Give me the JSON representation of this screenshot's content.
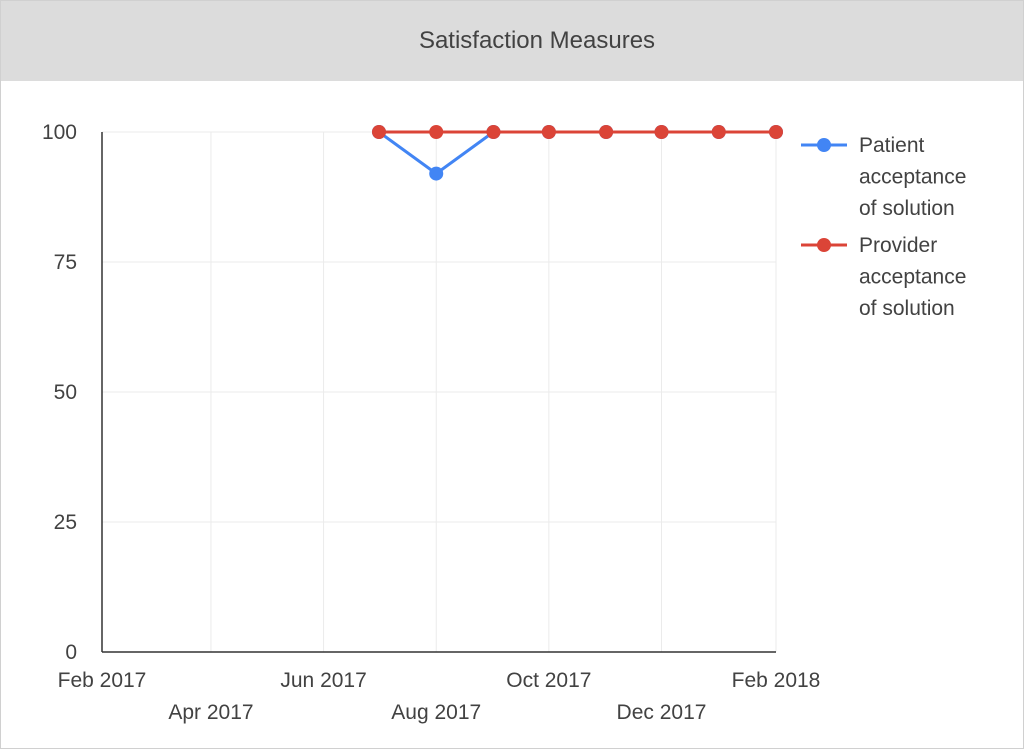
{
  "chart_data": {
    "type": "line",
    "title": "Satisfaction Measures",
    "xlabel": "",
    "ylabel": "",
    "ylim": [
      0,
      100
    ],
    "yticks": [
      "0",
      "25",
      "50",
      "75",
      "100"
    ],
    "xlim": [
      "2017-02-01",
      "2018-02-01"
    ],
    "xticks": [
      {
        "date": "2017-02-01",
        "label": "Feb 2017",
        "row": 1
      },
      {
        "date": "2017-04-01",
        "label": "Apr 2017",
        "row": 2
      },
      {
        "date": "2017-06-01",
        "label": "Jun 2017",
        "row": 1
      },
      {
        "date": "2017-08-01",
        "label": "Aug 2017",
        "row": 2
      },
      {
        "date": "2017-10-01",
        "label": "Oct 2017",
        "row": 1
      },
      {
        "date": "2017-12-01",
        "label": "Dec 2017",
        "row": 2
      },
      {
        "date": "2018-02-01",
        "label": "Feb 2018",
        "row": 1
      }
    ],
    "grid": true,
    "legend_position": "right",
    "series": [
      {
        "name": "Patient acceptance of solution",
        "legend_lines": [
          "Patient",
          "acceptance",
          "of solution"
        ],
        "color": "#4285f4",
        "x": [
          "2017-07-01",
          "2017-08-01",
          "2017-09-01",
          "2017-10-01",
          "2017-11-01",
          "2017-12-01",
          "2018-01-01",
          "2018-02-01"
        ],
        "y": [
          100,
          92,
          100,
          100,
          100,
          100,
          100,
          100
        ]
      },
      {
        "name": "Provider acceptance of solution",
        "legend_lines": [
          "Provider",
          "acceptance",
          "of solution"
        ],
        "color": "#db4437",
        "x": [
          "2017-07-01",
          "2017-08-01",
          "2017-09-01",
          "2017-10-01",
          "2017-11-01",
          "2017-12-01",
          "2018-01-01",
          "2018-02-01"
        ],
        "y": [
          100,
          100,
          100,
          100,
          100,
          100,
          100,
          100
        ]
      }
    ]
  }
}
